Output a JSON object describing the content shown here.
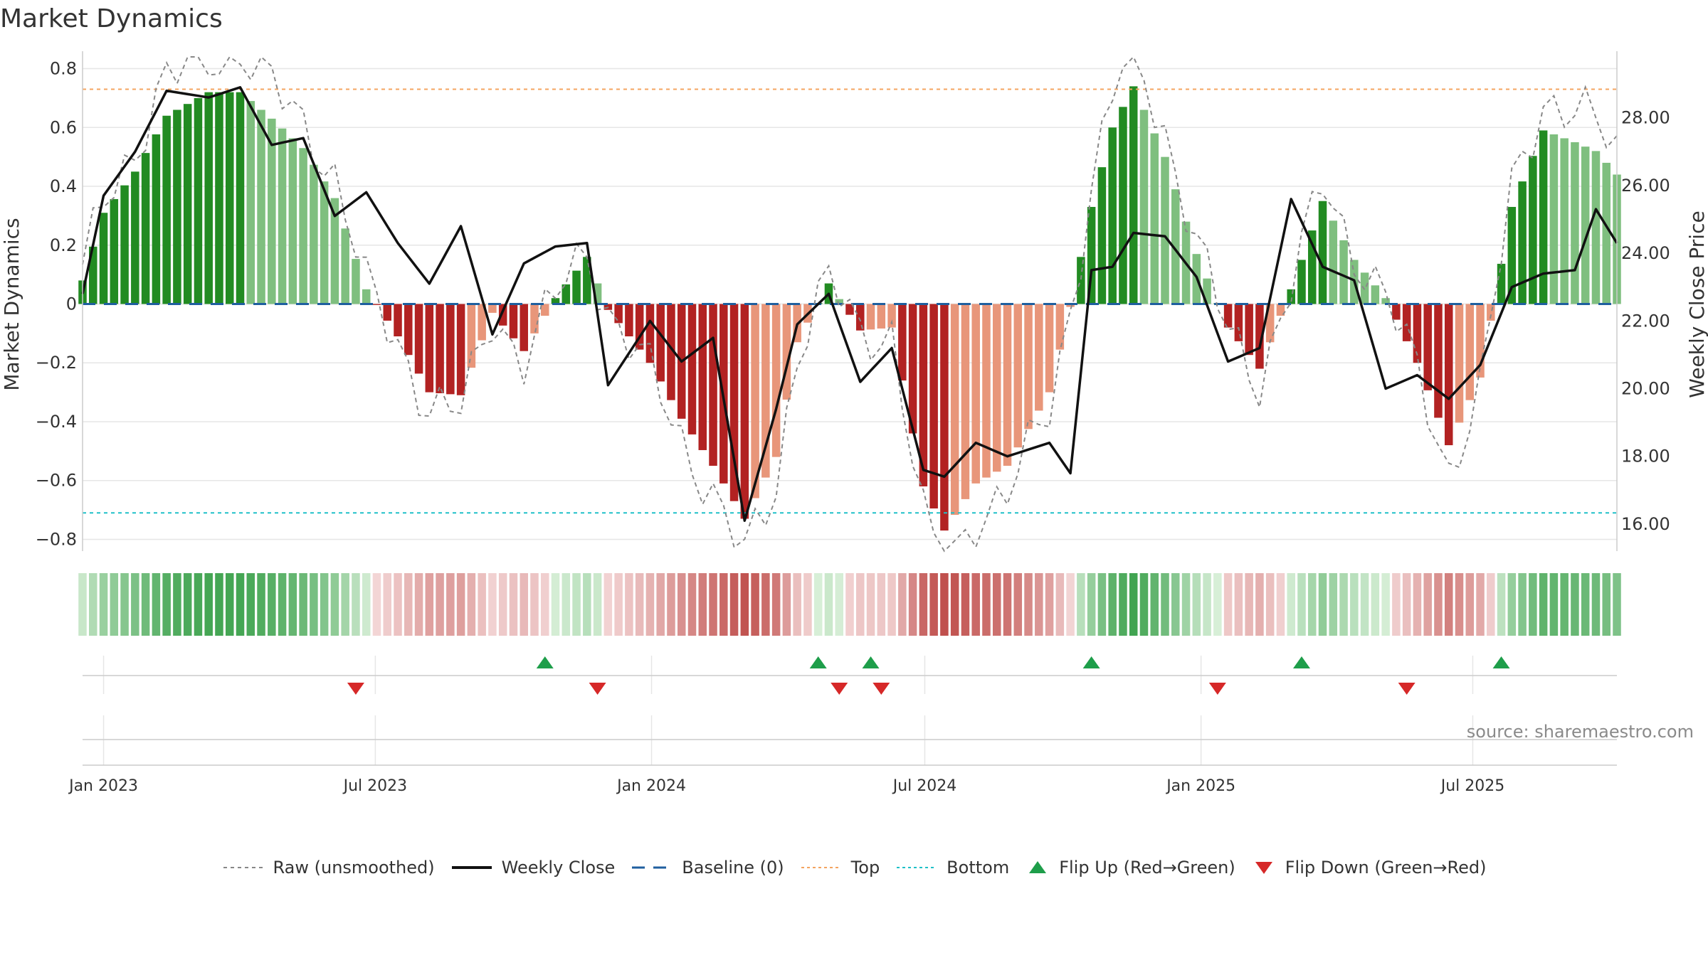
{
  "title": "Market Dynamics",
  "source": "source: sharemaestro.com",
  "colors": {
    "strong_up": "#228b22",
    "weak_up": "#7fbf7f",
    "strong_down": "#b22222",
    "weak_down": "#e8967a",
    "close": "#111111",
    "raw": "#888888",
    "baseline": "#1f5f9f",
    "top": "#f4a460",
    "bottom": "#20c0c8",
    "flip_up": "#1e9e4a",
    "flip_down": "#d62828"
  },
  "legend": {
    "raw": "Raw (unsmoothed)",
    "close": "Weekly Close",
    "baseline": "Baseline (0)",
    "top": "Top",
    "bottom": "Bottom",
    "flip_up": "Flip Up (Red→Green)",
    "flip_down": "Flip Down (Green→Red)"
  },
  "chart_data": {
    "type": "bar",
    "ylabel": "Market Dynamics",
    "y2label": "Weekly Close Price",
    "ylim": [
      -0.84,
      0.84
    ],
    "y2lim": [
      15.2,
      29.8
    ],
    "yticks": [
      "−0.8",
      "−0.6",
      "−0.4",
      "−0.2",
      "0",
      "0.2",
      "0.4",
      "0.6",
      "0.8"
    ],
    "y2ticks": [
      "16.00",
      "18.00",
      "20.00",
      "22.00",
      "24.00",
      "26.00",
      "28.00"
    ],
    "x_ticks": [
      "Jan 2023",
      "Jul 2023",
      "Jan 2024",
      "Jul 2024",
      "Jan 2025",
      "Jul 2025"
    ],
    "x_tick_dates": [
      "2023-01-01",
      "2023-07-01",
      "2024-01-01",
      "2024-07-01",
      "2025-01-01",
      "2025-07-01"
    ],
    "start_date": "2022-12-18",
    "end_date": "2025-10-05",
    "top_line": 0.73,
    "bottom_line": -0.71,
    "baseline": 0,
    "grid": true,
    "legend_position": "bottom-center",
    "series": [
      {
        "name": "Market Dynamics",
        "style": "bar"
      },
      {
        "name": "Raw (unsmoothed)",
        "style": "dashed line"
      },
      {
        "name": "Weekly Close",
        "style": "line",
        "axis": "right"
      }
    ],
    "anchors": [
      {
        "date": "2022-12-18",
        "md": 0.08,
        "close": 22.8
      },
      {
        "date": "2023-01-01",
        "md": 0.31,
        "close": 25.7
      },
      {
        "date": "2023-01-22",
        "md": 0.45,
        "close": 27.0
      },
      {
        "date": "2023-02-12",
        "md": 0.64,
        "close": 28.8
      },
      {
        "date": "2023-03-12",
        "md": 0.72,
        "close": 28.6
      },
      {
        "date": "2023-04-02",
        "md": 0.72,
        "close": 28.9
      },
      {
        "date": "2023-04-23",
        "md": 0.63,
        "close": 27.2
      },
      {
        "date": "2023-05-14",
        "md": 0.53,
        "close": 27.4
      },
      {
        "date": "2023-06-04",
        "md": 0.36,
        "close": 25.1
      },
      {
        "date": "2023-06-25",
        "md": 0.05,
        "close": 25.8
      },
      {
        "date": "2023-07-16",
        "md": -0.11,
        "close": 24.3
      },
      {
        "date": "2023-08-06",
        "md": -0.3,
        "close": 23.1
      },
      {
        "date": "2023-08-27",
        "md": -0.31,
        "close": 24.8
      },
      {
        "date": "2023-09-17",
        "md": -0.03,
        "close": 21.6
      },
      {
        "date": "2023-10-08",
        "md": -0.16,
        "close": 23.7
      },
      {
        "date": "2023-10-29",
        "md": 0.02,
        "close": 24.2
      },
      {
        "date": "2023-11-19",
        "md": 0.16,
        "close": 24.3
      },
      {
        "date": "2023-12-03",
        "md": -0.02,
        "close": 20.1
      },
      {
        "date": "2023-12-31",
        "md": -0.2,
        "close": 22.0
      },
      {
        "date": "2024-01-21",
        "md": -0.39,
        "close": 20.8
      },
      {
        "date": "2024-02-11",
        "md": -0.55,
        "close": 21.5
      },
      {
        "date": "2024-03-03",
        "md": -0.73,
        "close": 16.1
      },
      {
        "date": "2024-03-24",
        "md": -0.52,
        "close": 19.4
      },
      {
        "date": "2024-04-07",
        "md": -0.13,
        "close": 21.9
      },
      {
        "date": "2024-04-28",
        "md": 0.07,
        "close": 22.8
      },
      {
        "date": "2024-05-19",
        "md": -0.09,
        "close": 20.2
      },
      {
        "date": "2024-06-09",
        "md": -0.08,
        "close": 21.2
      },
      {
        "date": "2024-06-30",
        "md": -0.62,
        "close": 17.6
      },
      {
        "date": "2024-07-14",
        "md": -0.77,
        "close": 17.4
      },
      {
        "date": "2024-08-04",
        "md": -0.61,
        "close": 18.4
      },
      {
        "date": "2024-08-25",
        "md": -0.55,
        "close": 18.0
      },
      {
        "date": "2024-09-22",
        "md": -0.3,
        "close": 18.4
      },
      {
        "date": "2024-10-06",
        "md": -0.01,
        "close": 17.5
      },
      {
        "date": "2024-10-20",
        "md": 0.33,
        "close": 23.5
      },
      {
        "date": "2024-11-03",
        "md": 0.6,
        "close": 23.6
      },
      {
        "date": "2024-11-17",
        "md": 0.74,
        "close": 24.6
      },
      {
        "date": "2024-12-08",
        "md": 0.5,
        "close": 24.5
      },
      {
        "date": "2024-12-29",
        "md": 0.17,
        "close": 23.3
      },
      {
        "date": "2025-01-19",
        "md": -0.08,
        "close": 20.8
      },
      {
        "date": "2025-02-09",
        "md": -0.22,
        "close": 21.2
      },
      {
        "date": "2025-03-02",
        "md": 0.05,
        "close": 25.6
      },
      {
        "date": "2025-03-23",
        "md": 0.35,
        "close": 23.6
      },
      {
        "date": "2025-04-13",
        "md": 0.15,
        "close": 23.2
      },
      {
        "date": "2025-05-04",
        "md": 0.02,
        "close": 20.0
      },
      {
        "date": "2025-05-25",
        "md": -0.2,
        "close": 20.4
      },
      {
        "date": "2025-06-15",
        "md": -0.48,
        "close": 19.7
      },
      {
        "date": "2025-07-06",
        "md": -0.25,
        "close": 20.7
      },
      {
        "date": "2025-07-27",
        "md": 0.33,
        "close": 23.0
      },
      {
        "date": "2025-08-17",
        "md": 0.59,
        "close": 23.4
      },
      {
        "date": "2025-09-07",
        "md": 0.55,
        "close": 23.5
      },
      {
        "date": "2025-09-21",
        "md": 0.52,
        "close": 25.3
      },
      {
        "date": "2025-10-05",
        "md": 0.44,
        "close": 24.3
      }
    ],
    "flips_up": [
      "2023-10-22",
      "2024-04-21",
      "2024-05-26",
      "2024-10-20",
      "2025-03-09",
      "2025-07-20"
    ],
    "flips_down": [
      "2023-06-18",
      "2023-11-26",
      "2024-05-05",
      "2024-06-02",
      "2025-01-12",
      "2025-05-18"
    ]
  }
}
